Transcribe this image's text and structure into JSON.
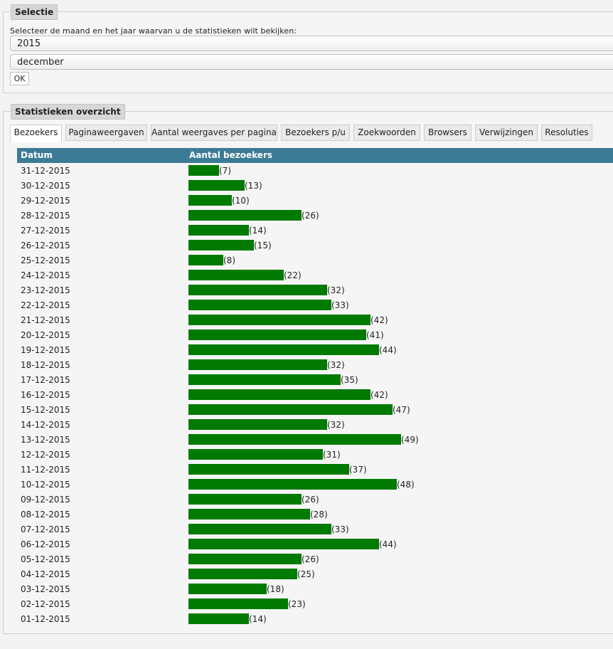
{
  "selection": {
    "legend": "Selectie",
    "prompt": "Selecteer de maand en het jaar waarvan u de statistieken wilt bekijken:",
    "year": "2015",
    "month": "december",
    "ok_label": "OK"
  },
  "overview": {
    "legend": "Statistieken overzicht",
    "tabs": [
      "Bezoekers",
      "Paginaweergaven",
      "Aantal weergaves per pagina",
      "Bezoekers p/u",
      "Zoekwoorden",
      "Browsers",
      "Verwijzingen",
      "Resoluties"
    ],
    "active_tab": "Bezoekers",
    "columns": [
      "Datum",
      "Aantal bezoekers"
    ]
  },
  "colors": {
    "header": "#3c7b96",
    "bar": "#007a00"
  },
  "chart_data": {
    "type": "bar",
    "orientation": "horizontal",
    "title": "Bezoekers",
    "xlabel": "Aantal bezoekers",
    "ylabel": "Datum",
    "categories": [
      "31-12-2015",
      "30-12-2015",
      "29-12-2015",
      "28-12-2015",
      "27-12-2015",
      "26-12-2015",
      "25-12-2015",
      "24-12-2015",
      "23-12-2015",
      "22-12-2015",
      "21-12-2015",
      "20-12-2015",
      "19-12-2015",
      "18-12-2015",
      "17-12-2015",
      "16-12-2015",
      "15-12-2015",
      "14-12-2015",
      "13-12-2015",
      "12-12-2015",
      "11-12-2015",
      "10-12-2015",
      "09-12-2015",
      "08-12-2015",
      "07-12-2015",
      "06-12-2015",
      "05-12-2015",
      "04-12-2015",
      "03-12-2015",
      "02-12-2015",
      "01-12-2015"
    ],
    "values": [
      7,
      13,
      10,
      26,
      14,
      15,
      8,
      22,
      32,
      33,
      42,
      41,
      44,
      32,
      35,
      42,
      47,
      32,
      49,
      31,
      37,
      48,
      26,
      28,
      33,
      44,
      26,
      25,
      18,
      23,
      14
    ],
    "labels": [
      "(7)",
      "(13)",
      "(10)",
      "(26)",
      "(14)",
      "(15)",
      "(8)",
      "(22)",
      "(32)",
      "(33)",
      "(42)",
      "(41)",
      "(44)",
      "(32)",
      "(35)",
      "(42)",
      "(47)",
      "(32)",
      "(49)",
      "(31)",
      "(37)",
      "(48)",
      "(26)",
      "(28)",
      "(33)",
      "(44)",
      "(26)",
      "(25)",
      "(18)",
      "(23)",
      "(14)"
    ]
  }
}
